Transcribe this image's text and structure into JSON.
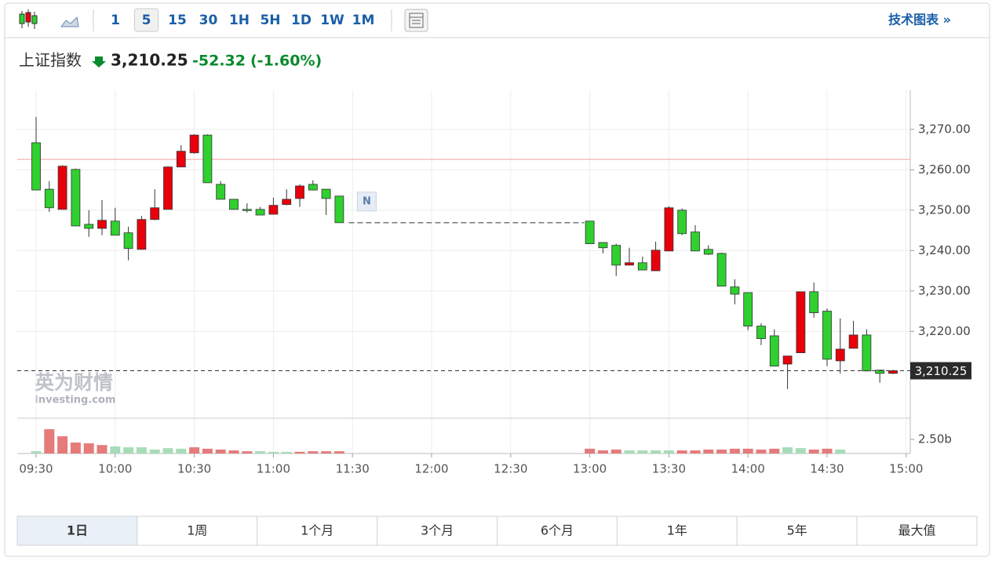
{
  "toolbar": {
    "intervals": [
      "1",
      "5",
      "15",
      "30",
      "1H",
      "5H",
      "1D",
      "1W",
      "1M"
    ],
    "active": 1,
    "link": "技术图表 »"
  },
  "header": {
    "name": "上证指数",
    "price": "3,210.25",
    "change": "-52.32",
    "change_pct": "(-1.60%)"
  },
  "chart_data": {
    "type": "candlestick",
    "categories": [
      "09:30",
      null,
      null,
      null,
      null,
      null,
      "10:00",
      null,
      null,
      null,
      null,
      null,
      "10:30",
      null,
      null,
      null,
      null,
      null,
      "11:00",
      null,
      null,
      null,
      null,
      null,
      "11:30",
      null,
      null,
      null,
      null,
      null,
      "12:00",
      null,
      null,
      null,
      null,
      null,
      "12:30",
      null,
      null,
      null,
      null,
      null,
      "13:00",
      null,
      null,
      null,
      null,
      null,
      "13:30",
      null,
      null,
      null,
      null,
      null,
      "14:00",
      null,
      null,
      null,
      null,
      null,
      "14:30",
      null,
      null,
      null,
      null,
      null,
      "15:00"
    ],
    "open": [
      3266.7,
      3255.2,
      3250.2,
      3260.1,
      3246.5,
      3245.5,
      3247.3,
      3244.4,
      3240.3,
      3247.7,
      3250.2,
      3260.7,
      3264.2,
      3268.6,
      3256.4,
      3252.7,
      3250.2,
      3250.2,
      3249.0,
      3251.4,
      3252.9,
      3256.4,
      3255.2,
      3253.5,
      null,
      null,
      null,
      null,
      null,
      null,
      null,
      null,
      null,
      null,
      null,
      null,
      null,
      null,
      null,
      null,
      null,
      null,
      3247.3,
      3242.0,
      3241.3,
      3236.4,
      3237.0,
      3235.0,
      3239.9,
      3250.0,
      3244.6,
      3240.3,
      3239.3,
      3231.0,
      3229.6,
      3221.3,
      3218.9,
      3211.9,
      3214.7,
      3229.8,
      3225.0,
      3212.7,
      3215.8,
      3219.1,
      3210.4,
      3209.6,
      null
    ],
    "high": [
      3273.1,
      3257.2,
      3261.1,
      3260.3,
      3250.0,
      3252.5,
      3250.6,
      3245.9,
      3248.6,
      3255.2,
      3260.9,
      3266.1,
      3268.8,
      3268.8,
      3257.2,
      3252.7,
      3251.7,
      3250.8,
      3253.1,
      3255.2,
      3256.4,
      3257.4,
      3255.2,
      3253.5,
      null,
      null,
      null,
      null,
      null,
      null,
      null,
      null,
      null,
      null,
      null,
      null,
      null,
      null,
      null,
      null,
      null,
      null,
      3247.3,
      3242.0,
      3241.7,
      3240.7,
      3238.5,
      3242.2,
      3251.0,
      3250.4,
      3246.3,
      3241.3,
      3239.5,
      3232.9,
      3229.6,
      3222.0,
      3220.5,
      3213.9,
      3229.8,
      3232.1,
      3225.7,
      3223.2,
      3222.6,
      3220.5,
      3210.4,
      3210.5,
      null
    ],
    "low": [
      3255.0,
      3249.6,
      3250.2,
      3246.1,
      3243.4,
      3243.8,
      3243.8,
      3237.6,
      3240.3,
      3247.5,
      3250.2,
      3260.7,
      3264.0,
      3256.8,
      3252.7,
      3250.2,
      3249.4,
      3248.8,
      3249.0,
      3251.2,
      3250.8,
      3254.9,
      3248.8,
      3246.9,
      null,
      null,
      null,
      null,
      null,
      null,
      null,
      null,
      null,
      null,
      null,
      null,
      null,
      null,
      null,
      null,
      null,
      null,
      3241.7,
      3239.3,
      3233.7,
      3236.4,
      3235.2,
      3235.0,
      3239.9,
      3243.8,
      3239.9,
      3238.9,
      3231.2,
      3226.7,
      3220.3,
      3216.6,
      3211.4,
      3205.7,
      3214.7,
      3223.4,
      3211.4,
      3209.6,
      3215.8,
      3210.2,
      3207.3,
      3209.4,
      null
    ],
    "close": [
      3255.0,
      3250.6,
      3260.9,
      3246.1,
      3245.5,
      3247.5,
      3243.8,
      3240.5,
      3247.7,
      3250.6,
      3260.7,
      3264.6,
      3268.6,
      3256.8,
      3252.7,
      3250.2,
      3250.0,
      3248.8,
      3251.2,
      3252.7,
      3256.0,
      3255.0,
      3252.9,
      3246.9,
      null,
      null,
      null,
      null,
      null,
      null,
      null,
      null,
      null,
      null,
      null,
      null,
      null,
      null,
      null,
      null,
      null,
      null,
      3241.7,
      3240.7,
      3236.4,
      3237.0,
      3235.2,
      3240.1,
      3250.6,
      3244.2,
      3239.9,
      3239.1,
      3231.2,
      3229.2,
      3221.3,
      3218.2,
      3211.4,
      3213.9,
      3229.8,
      3224.6,
      3213.1,
      3215.6,
      3219.1,
      3210.2,
      3209.6,
      3210.25,
      null
    ],
    "up_color": "#e8000b",
    "down_color": "#2fd02f",
    "ylim": [
      3198.5,
      3279.7
    ],
    "yticks": [
      {
        "value": 3220,
        "label": "3,220.00"
      },
      {
        "value": 3230,
        "label": "3,230.00"
      },
      {
        "value": 3240,
        "label": "3,240.00"
      },
      {
        "value": 3250,
        "label": "3,250.00"
      },
      {
        "value": 3260,
        "label": "3,260.00"
      },
      {
        "value": 3270,
        "label": "3,270.00"
      }
    ],
    "grid": true,
    "prev_close": 3262.57,
    "last_price": {
      "value": 3210.25,
      "label": "3,210.25"
    },
    "annotations": [
      {
        "text": "N"
      }
    ],
    "volume": {
      "values": [
        0.4,
        4.3,
        3.05,
        1.95,
        1.8,
        1.5,
        1.25,
        1.1,
        1.1,
        0.7,
        0.95,
        0.85,
        1.1,
        0.85,
        0.7,
        0.55,
        0.4,
        0.4,
        0.3,
        0.3,
        0.3,
        0.4,
        0.4,
        0.4,
        null,
        null,
        null,
        null,
        null,
        null,
        null,
        null,
        null,
        null,
        null,
        null,
        null,
        null,
        null,
        null,
        null,
        null,
        0.85,
        0.55,
        0.7,
        0.55,
        0.55,
        0.55,
        0.55,
        0.55,
        0.55,
        0.7,
        0.7,
        0.85,
        0.85,
        0.7,
        0.85,
        1.1,
        0.95,
        0.7,
        0.85,
        0.7,
        null,
        null,
        null,
        null,
        null
      ],
      "colors": [
        "#a8dcb8",
        "#e57b7b",
        "#e57b7b",
        "#e57b7b",
        "#e57b7b",
        "#e57b7b",
        "#a8dcb8",
        "#a8dcb8",
        "#a8dcb8",
        "#a8dcb8",
        "#a8dcb8",
        "#a8dcb8",
        "#e57b7b",
        "#e57b7b",
        "#e57b7b",
        "#e57b7b",
        "#e57b7b",
        "#a8dcb8",
        "#a8dcb8",
        "#a8dcb8",
        "#e57b7b",
        "#e57b7b",
        "#e57b7b",
        "#e57b7b",
        null,
        null,
        null,
        null,
        null,
        null,
        null,
        null,
        null,
        null,
        null,
        null,
        null,
        null,
        null,
        null,
        null,
        null,
        "#e57b7b",
        "#e57b7b",
        "#e57b7b",
        "#a8dcb8",
        "#a8dcb8",
        "#a8dcb8",
        "#a8dcb8",
        "#e57b7b",
        "#e57b7b",
        "#e57b7b",
        "#e57b7b",
        "#e57b7b",
        "#e57b7b",
        "#e57b7b",
        "#e57b7b",
        "#a8dcb8",
        "#a8dcb8",
        "#e57b7b",
        "#e57b7b",
        "#a8dcb8",
        null,
        null,
        null,
        null,
        null
      ],
      "ylim": [
        0,
        6.25
      ],
      "yticks": [
        {
          "value": 2.5,
          "label": "2.50b"
        }
      ]
    }
  },
  "watermark": {
    "brand": "英为财情",
    "site": "Investing.com"
  },
  "range_tabs": {
    "tabs": [
      "1日",
      "1周",
      "1个月",
      "3个月",
      "6个月",
      "1年",
      "5年",
      "最大值"
    ],
    "active": 0
  }
}
